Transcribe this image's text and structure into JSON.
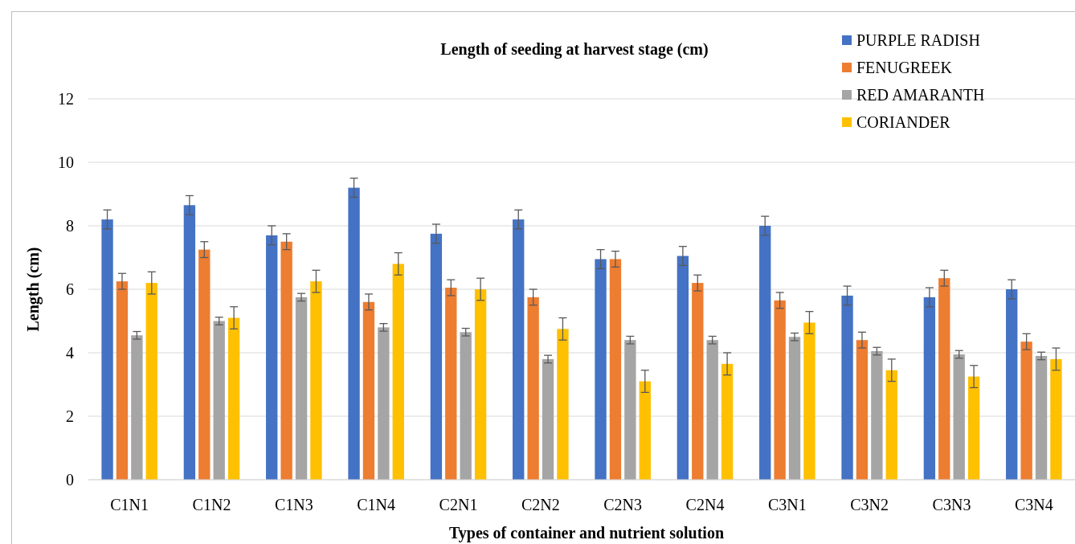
{
  "chart_data": {
    "type": "bar",
    "title": "Length of seeding at harvest stage (cm)",
    "xlabel": "Types of container and nutrient solution",
    "ylabel": "Length (cm)",
    "categories": [
      "C1N1",
      "C1N2",
      "C1N3",
      "C1N4",
      "C2N1",
      "C2N2",
      "C2N3",
      "C2N4",
      "C3N1",
      "C3N2",
      "C3N3",
      "C3N4"
    ],
    "series": [
      {
        "name": "PURPLE RADISH",
        "color": "#4472c4",
        "values": [
          8.2,
          8.65,
          7.7,
          9.2,
          7.75,
          8.2,
          6.95,
          7.05,
          8.0,
          5.8,
          5.75,
          6.0
        ],
        "errors": [
          0.3,
          0.3,
          0.3,
          0.3,
          0.3,
          0.3,
          0.3,
          0.3,
          0.3,
          0.3,
          0.3,
          0.3
        ]
      },
      {
        "name": "FENUGREEK",
        "color": "#ed7d31",
        "values": [
          6.25,
          7.25,
          7.5,
          5.6,
          6.05,
          5.75,
          6.95,
          6.2,
          5.65,
          4.4,
          6.35,
          4.35
        ],
        "errors": [
          0.25,
          0.25,
          0.25,
          0.25,
          0.25,
          0.25,
          0.25,
          0.25,
          0.25,
          0.25,
          0.25,
          0.25
        ]
      },
      {
        "name": "RED AMARANTH",
        "color": "#a5a5a5",
        "values": [
          4.55,
          5.0,
          5.75,
          4.8,
          4.65,
          3.8,
          4.4,
          4.4,
          4.5,
          4.05,
          3.95,
          3.9
        ],
        "errors": [
          0.12,
          0.12,
          0.12,
          0.12,
          0.12,
          0.12,
          0.12,
          0.12,
          0.12,
          0.12,
          0.12,
          0.12
        ]
      },
      {
        "name": "CORIANDER",
        "color": "#ffc000",
        "values": [
          6.2,
          5.1,
          6.25,
          6.8,
          6.0,
          4.75,
          3.1,
          3.65,
          4.95,
          3.45,
          3.25,
          3.8
        ],
        "errors": [
          0.35,
          0.35,
          0.35,
          0.35,
          0.35,
          0.35,
          0.35,
          0.35,
          0.35,
          0.35,
          0.35,
          0.35
        ]
      }
    ],
    "ylim": [
      0,
      12
    ],
    "yticks": [
      0,
      2,
      4,
      6,
      8,
      10,
      12
    ],
    "grid": "y",
    "legend": "top right"
  }
}
